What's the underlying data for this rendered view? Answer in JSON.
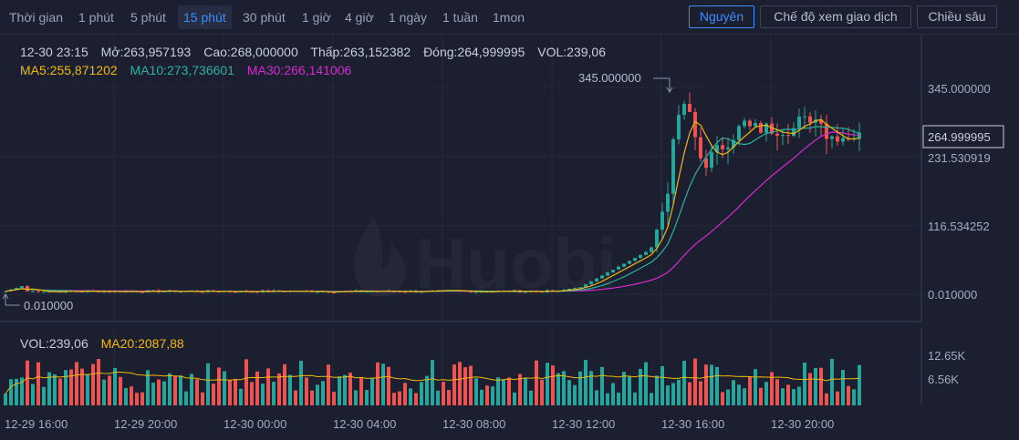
{
  "toolbar": {
    "timeframes": [
      "Thời gian",
      "1 phút",
      "5 phút",
      "15 phút",
      "30 phút",
      "1 giờ",
      "4 giờ",
      "1 ngày",
      "1 tuần",
      "1mon"
    ],
    "active_timeframe": "15 phút",
    "buttons": {
      "original": "Nguyên",
      "view_mode": "Chế độ xem giao dịch",
      "depth": "Chiều sâu"
    }
  },
  "ohlc": {
    "time": "12-30 23:15",
    "open": "Mở:263,957193",
    "high": "Cao:268,000000",
    "low": "Thấp:263,152382",
    "close": "Đóng:264,999995",
    "vol": "VOL:239,06"
  },
  "ma": {
    "ma5": "MA5:255,871202",
    "ma10": "MA10:273,736601",
    "ma30": "MA30:266,141006"
  },
  "volume_info": {
    "vol": "VOL:239,06",
    "ma20": "MA20:2087,88"
  },
  "price_axis": [
    "345.000000",
    "231.530919",
    "116.534252",
    "0.010000"
  ],
  "current_price": "264.999995",
  "max_marker": "345.000000",
  "min_marker": "0.010000",
  "volume_axis": [
    "12.65K",
    "6.56K"
  ],
  "time_axis": [
    "12-29 16:00",
    "12-29 20:00",
    "12-30 00:00",
    "12-30 04:00",
    "12-30 08:00",
    "12-30 12:00",
    "12-30 16:00",
    "12-30 20:00"
  ],
  "watermark": "Huobi",
  "colors": {
    "up": "#26a69a",
    "down": "#ef5350",
    "ma5": "#f0b90b",
    "ma10": "#2bb39f",
    "ma30": "#d62bd0",
    "accent": "#3f8cff",
    "background": "#1b1f2f"
  },
  "chart_data": {
    "type": "candlestick",
    "interval": "15 phút",
    "price_range": [
      0.01,
      345
    ],
    "series": [
      {
        "name": "MA5"
      },
      {
        "name": "MA10"
      },
      {
        "name": "MA30"
      }
    ]
  }
}
